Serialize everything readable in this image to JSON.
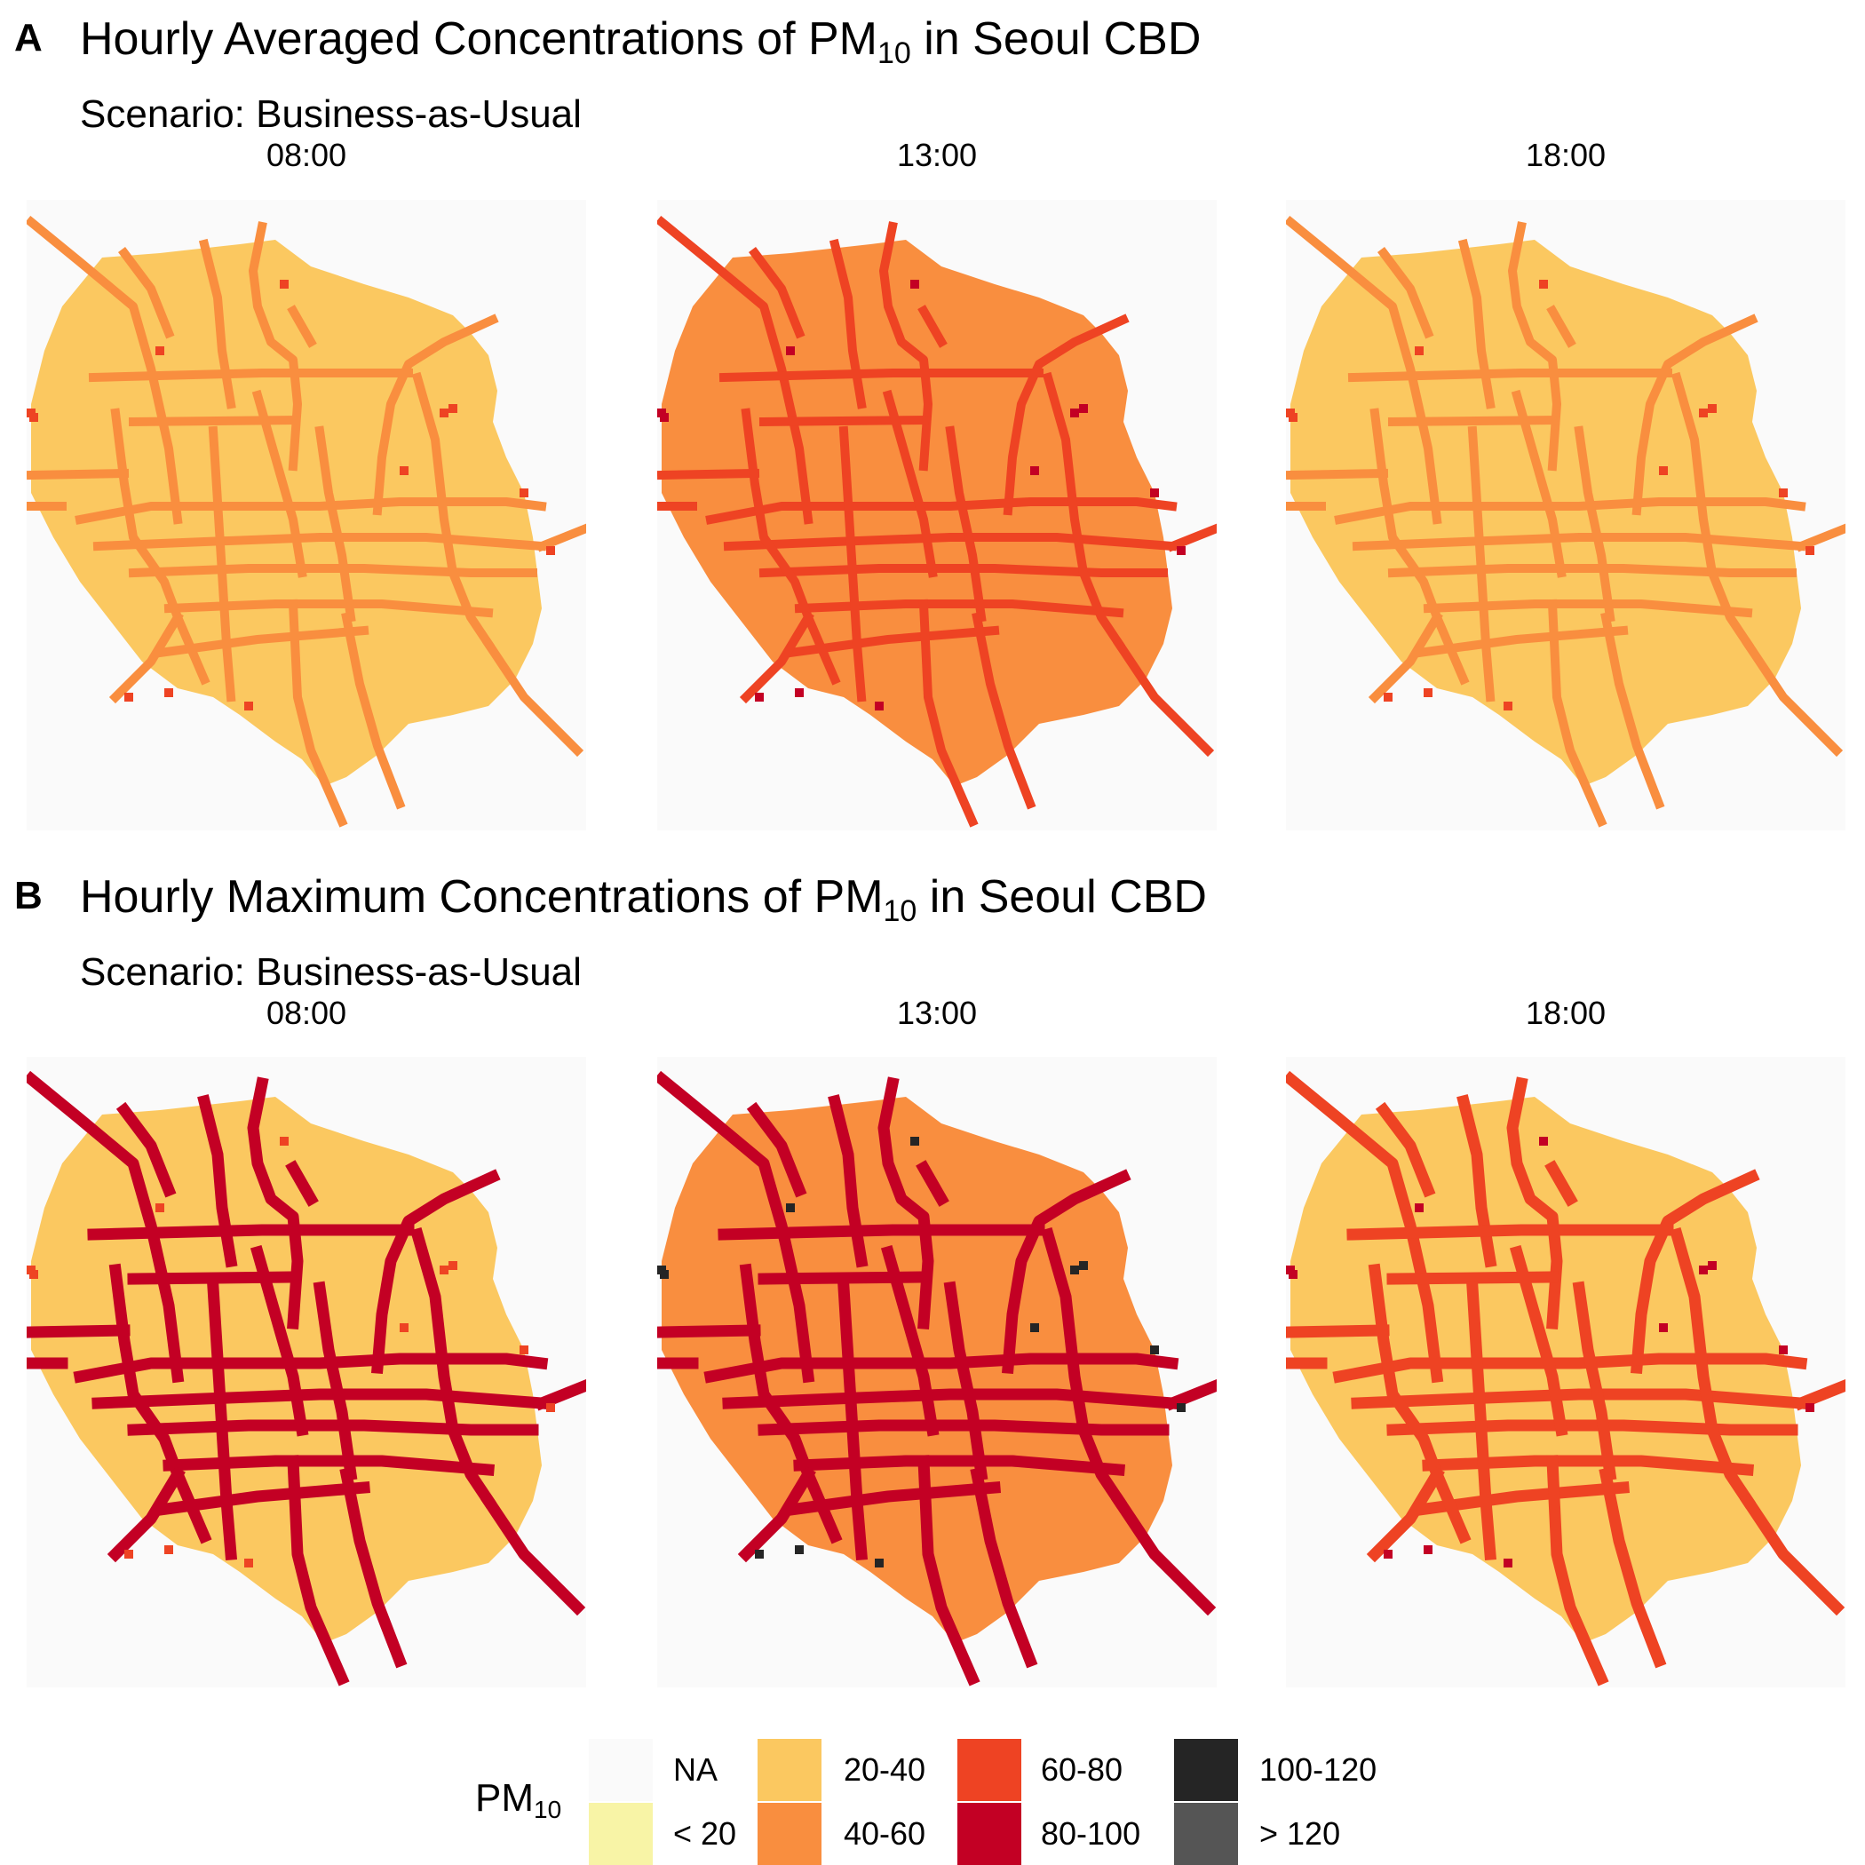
{
  "panels": [
    {
      "letter": "A",
      "title_pre": "Hourly Averaged Concentrations of PM",
      "title_sub": "10",
      "title_post": " in Seoul CBD",
      "subtitle": "Scenario: Business-as-Usual",
      "facets": [
        {
          "label": "08:00",
          "fill_class": "20-40",
          "road_class": "40-60",
          "hotspot_class": "60-80"
        },
        {
          "label": "13:00",
          "fill_class": "40-60",
          "road_class": "60-80",
          "hotspot_class": "80-100"
        },
        {
          "label": "18:00",
          "fill_class": "20-40",
          "road_class": "40-60",
          "hotspot_class": "60-80"
        }
      ]
    },
    {
      "letter": "B",
      "title_pre": "Hourly Maximum Concentrations of PM",
      "title_sub": "10",
      "title_post": " in Seoul CBD",
      "subtitle": "Scenario: Business-as-Usual",
      "facets": [
        {
          "label": "08:00",
          "fill_class": "20-40",
          "road_class": "80-100",
          "hotspot_class": "60-80"
        },
        {
          "label": "13:00",
          "fill_class": "40-60",
          "road_class": "80-100",
          "hotspot_class": "100-120"
        },
        {
          "label": "18:00",
          "fill_class": "20-40",
          "road_class": "60-80",
          "hotspot_class": "80-100"
        }
      ]
    }
  ],
  "legend": {
    "title_pre": "PM",
    "title_sub": "10",
    "items": [
      {
        "label": "NA",
        "color": "#fafafa"
      },
      {
        "label": "< 20",
        "color": "#f8f4a6"
      },
      {
        "label": "20-40",
        "color": "#fbc860"
      },
      {
        "label": "40-60",
        "color": "#f98e3f"
      },
      {
        "label": "60-80",
        "color": "#ee4323"
      },
      {
        "label": "80-100",
        "color": "#c30024"
      },
      {
        "label": "100-120",
        "color": "#252525"
      },
      {
        "label": "> 120",
        "color": "#555555"
      }
    ]
  }
}
